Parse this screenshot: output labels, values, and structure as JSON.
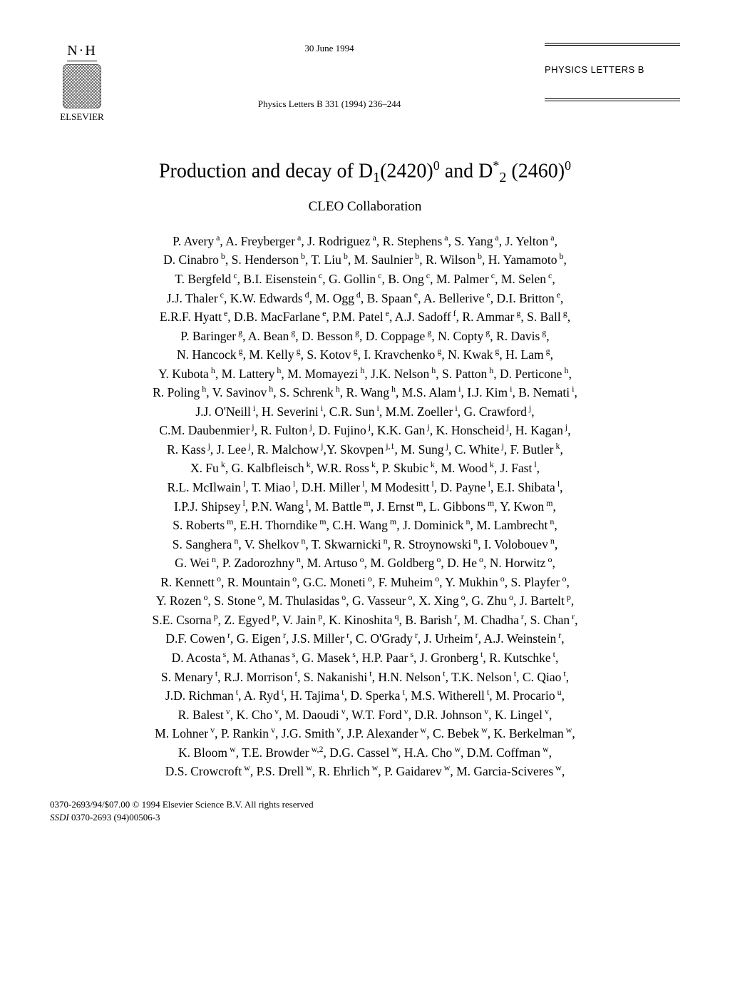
{
  "header": {
    "logo_initials": "N·H",
    "publisher": "ELSEVIER",
    "date": "30 June 1994",
    "citation": "Physics Letters B 331 (1994) 236–244",
    "journal": "PHYSICS LETTERS B"
  },
  "title_html": "Production and decay of D<sub>1</sub>(2420)<sup>0</sup> and D<sup>*</sup><sub>2</sub> (2460)<sup>0</sup>",
  "collaboration": "CLEO Collaboration",
  "authors_html": "P. Avery<sup> a</sup>, A. Freyberger<sup> a</sup>, J. Rodriguez<sup> a</sup>, R. Stephens<sup> a</sup>, S. Yang<sup> a</sup>, J. Yelton<sup> a</sup>,<br>D. Cinabro<sup> b</sup>, S. Henderson<sup> b</sup>, T. Liu<sup> b</sup>, M. Saulnier<sup> b</sup>, R. Wilson<sup> b</sup>, H. Yamamoto<sup> b</sup>,<br>T. Bergfeld<sup> c</sup>, B.I. Eisenstein<sup> c</sup>, G. Gollin<sup> c</sup>, B. Ong<sup> c</sup>, M. Palmer<sup> c</sup>, M. Selen<sup> c</sup>,<br>J.J. Thaler<sup> c</sup>, K.W. Edwards<sup> d</sup>, M. Ogg<sup> d</sup>, B. Spaan<sup> e</sup>, A. Bellerive<sup> e</sup>, D.I. Britton<sup> e</sup>,<br>E.R.F. Hyatt<sup> e</sup>, D.B. MacFarlane<sup> e</sup>, P.M. Patel<sup> e</sup>, A.J. Sadoff<sup> f</sup>, R. Ammar<sup> g</sup>, S. Ball<sup> g</sup>,<br>P. Baringer<sup> g</sup>, A. Bean<sup> g</sup>, D. Besson<sup> g</sup>, D. Coppage<sup> g</sup>, N. Copty<sup> g</sup>, R. Davis<sup> g</sup>,<br>N. Hancock<sup> g</sup>, M. Kelly<sup> g</sup>, S. Kotov<sup> g</sup>, I. Kravchenko<sup> g</sup>, N. Kwak<sup> g</sup>, H. Lam<sup> g</sup>,<br>Y. Kubota<sup> h</sup>, M. Lattery<sup> h</sup>, M. Momayezi<sup> h</sup>, J.K. Nelson<sup> h</sup>, S. Patton<sup> h</sup>, D. Perticone<sup> h</sup>,<br>R. Poling<sup> h</sup>, V. Savinov<sup> h</sup>, S. Schrenk<sup> h</sup>, R. Wang<sup> h</sup>, M.S. Alam<sup> i</sup>, I.J. Kim<sup> i</sup>, B. Nemati<sup> i</sup>,<br>J.J. O'Neill<sup> i</sup>, H. Severini<sup> i</sup>, C.R. Sun<sup> i</sup>, M.M. Zoeller<sup> i</sup>, G. Crawford<sup> j</sup>,<br>C.M. Daubenmier<sup> j</sup>, R. Fulton<sup> j</sup>, D. Fujino<sup> j</sup>, K.K. Gan<sup> j</sup>, K. Honscheid<sup> j</sup>, H. Kagan<sup> j</sup>,<br>R. Kass<sup> j</sup>, J. Lee<sup> j</sup>, R. Malchow<sup> j</sup>,Y. Skovpen<sup> j,1</sup>, M. Sung<sup> j</sup>, C. White<sup> j</sup>, F. Butler<sup> k</sup>,<br>X. Fu<sup> k</sup>, G. Kalbfleisch<sup> k</sup>, W.R. Ross<sup> k</sup>, P. Skubic<sup> k</sup>, M. Wood<sup> k</sup>, J. Fast<sup> l</sup>,<br>R.L. McIlwain<sup> l</sup>, T. Miao<sup> l</sup>, D.H. Miller<sup> l</sup>, M Modesitt<sup> l</sup>, D. Payne<sup> l</sup>, E.I. Shibata<sup> l</sup>,<br>I.P.J. Shipsey<sup> l</sup>, P.N. Wang<sup> l</sup>, M. Battle<sup> m</sup>, J. Ernst<sup> m</sup>, L. Gibbons<sup> m</sup>, Y. Kwon<sup> m</sup>,<br>S. Roberts<sup> m</sup>, E.H. Thorndike<sup> m</sup>, C.H. Wang<sup> m</sup>, J. Dominick<sup> n</sup>, M. Lambrecht<sup> n</sup>,<br>S. Sanghera<sup> n</sup>, V. Shelkov<sup> n</sup>, T. Skwarnicki<sup> n</sup>, R. Stroynowski<sup> n</sup>, I. Volobouev<sup> n</sup>,<br>G. Wei<sup> n</sup>, P. Zadorozhny<sup> n</sup>, M. Artuso<sup> o</sup>, M. Goldberg<sup> o</sup>, D. He<sup> o</sup>, N. Horwitz<sup> o</sup>,<br>R. Kennett<sup> o</sup>, R. Mountain<sup> o</sup>, G.C. Moneti<sup> o</sup>, F. Muheim<sup> o</sup>, Y. Mukhin<sup> o</sup>, S. Playfer<sup> o</sup>,<br>Y. Rozen<sup> o</sup>, S. Stone<sup> o</sup>, M. Thulasidas<sup> o</sup>, G. Vasseur<sup> o</sup>, X. Xing<sup> o</sup>, G. Zhu<sup> o</sup>, J. Bartelt<sup> p</sup>,<br>S.E. Csorna<sup> p</sup>, Z. Egyed<sup> p</sup>, V. Jain<sup> p</sup>, K. Kinoshita<sup> q</sup>, B. Barish<sup> r</sup>, M. Chadha<sup> r</sup>, S. Chan<sup> r</sup>,<br>D.F. Cowen<sup> r</sup>, G. Eigen<sup> r</sup>, J.S. Miller<sup> r</sup>, C. O'Grady<sup> r</sup>, J. Urheim<sup> r</sup>, A.J. Weinstein<sup> r</sup>,<br>D. Acosta<sup> s</sup>, M. Athanas<sup> s</sup>, G. Masek<sup> s</sup>, H.P. Paar<sup> s</sup>, J. Gronberg<sup> t</sup>, R. Kutschke<sup> t</sup>,<br>S. Menary<sup> t</sup>, R.J. Morrison<sup> t</sup>, S. Nakanishi<sup> t</sup>, H.N. Nelson<sup> t</sup>, T.K. Nelson<sup> t</sup>, C. Qiao<sup> t</sup>,<br>J.D. Richman<sup> t</sup>, A. Ryd<sup> t</sup>, H. Tajima<sup> t</sup>, D. Sperka<sup> t</sup>, M.S. Witherell<sup> t</sup>, M. Procario<sup> u</sup>,<br>R. Balest<sup> v</sup>, K. Cho<sup> v</sup>, M. Daoudi<sup> v</sup>, W.T. Ford<sup> v</sup>, D.R. Johnson<sup> v</sup>, K. Lingel<sup> v</sup>,<br>M. Lohner<sup> v</sup>, P. Rankin<sup> v</sup>, J.G. Smith<sup> v</sup>, J.P. Alexander<sup> w</sup>, C. Bebek<sup> w</sup>, K. Berkelman<sup> w</sup>,<br>K. Bloom<sup> w</sup>, T.E. Browder<sup> w,2</sup>, D.G. Cassel<sup> w</sup>, H.A. Cho<sup> w</sup>, D.M. Coffman<sup> w</sup>,<br>D.S. Crowcroft<sup> w</sup>, P.S. Drell<sup> w</sup>, R. Ehrlich<sup> w</sup>, P. Gaidarev<sup> w</sup>, M. Garcia-Sciveres<sup> w</sup>,",
  "footer": {
    "copyright": "0370-2693/94/$07.00 © 1994 Elsevier Science B.V. All rights reserved",
    "ssdi_label": "SSDI",
    "ssdi_value": " 0370-2693 (94)00506-3"
  }
}
